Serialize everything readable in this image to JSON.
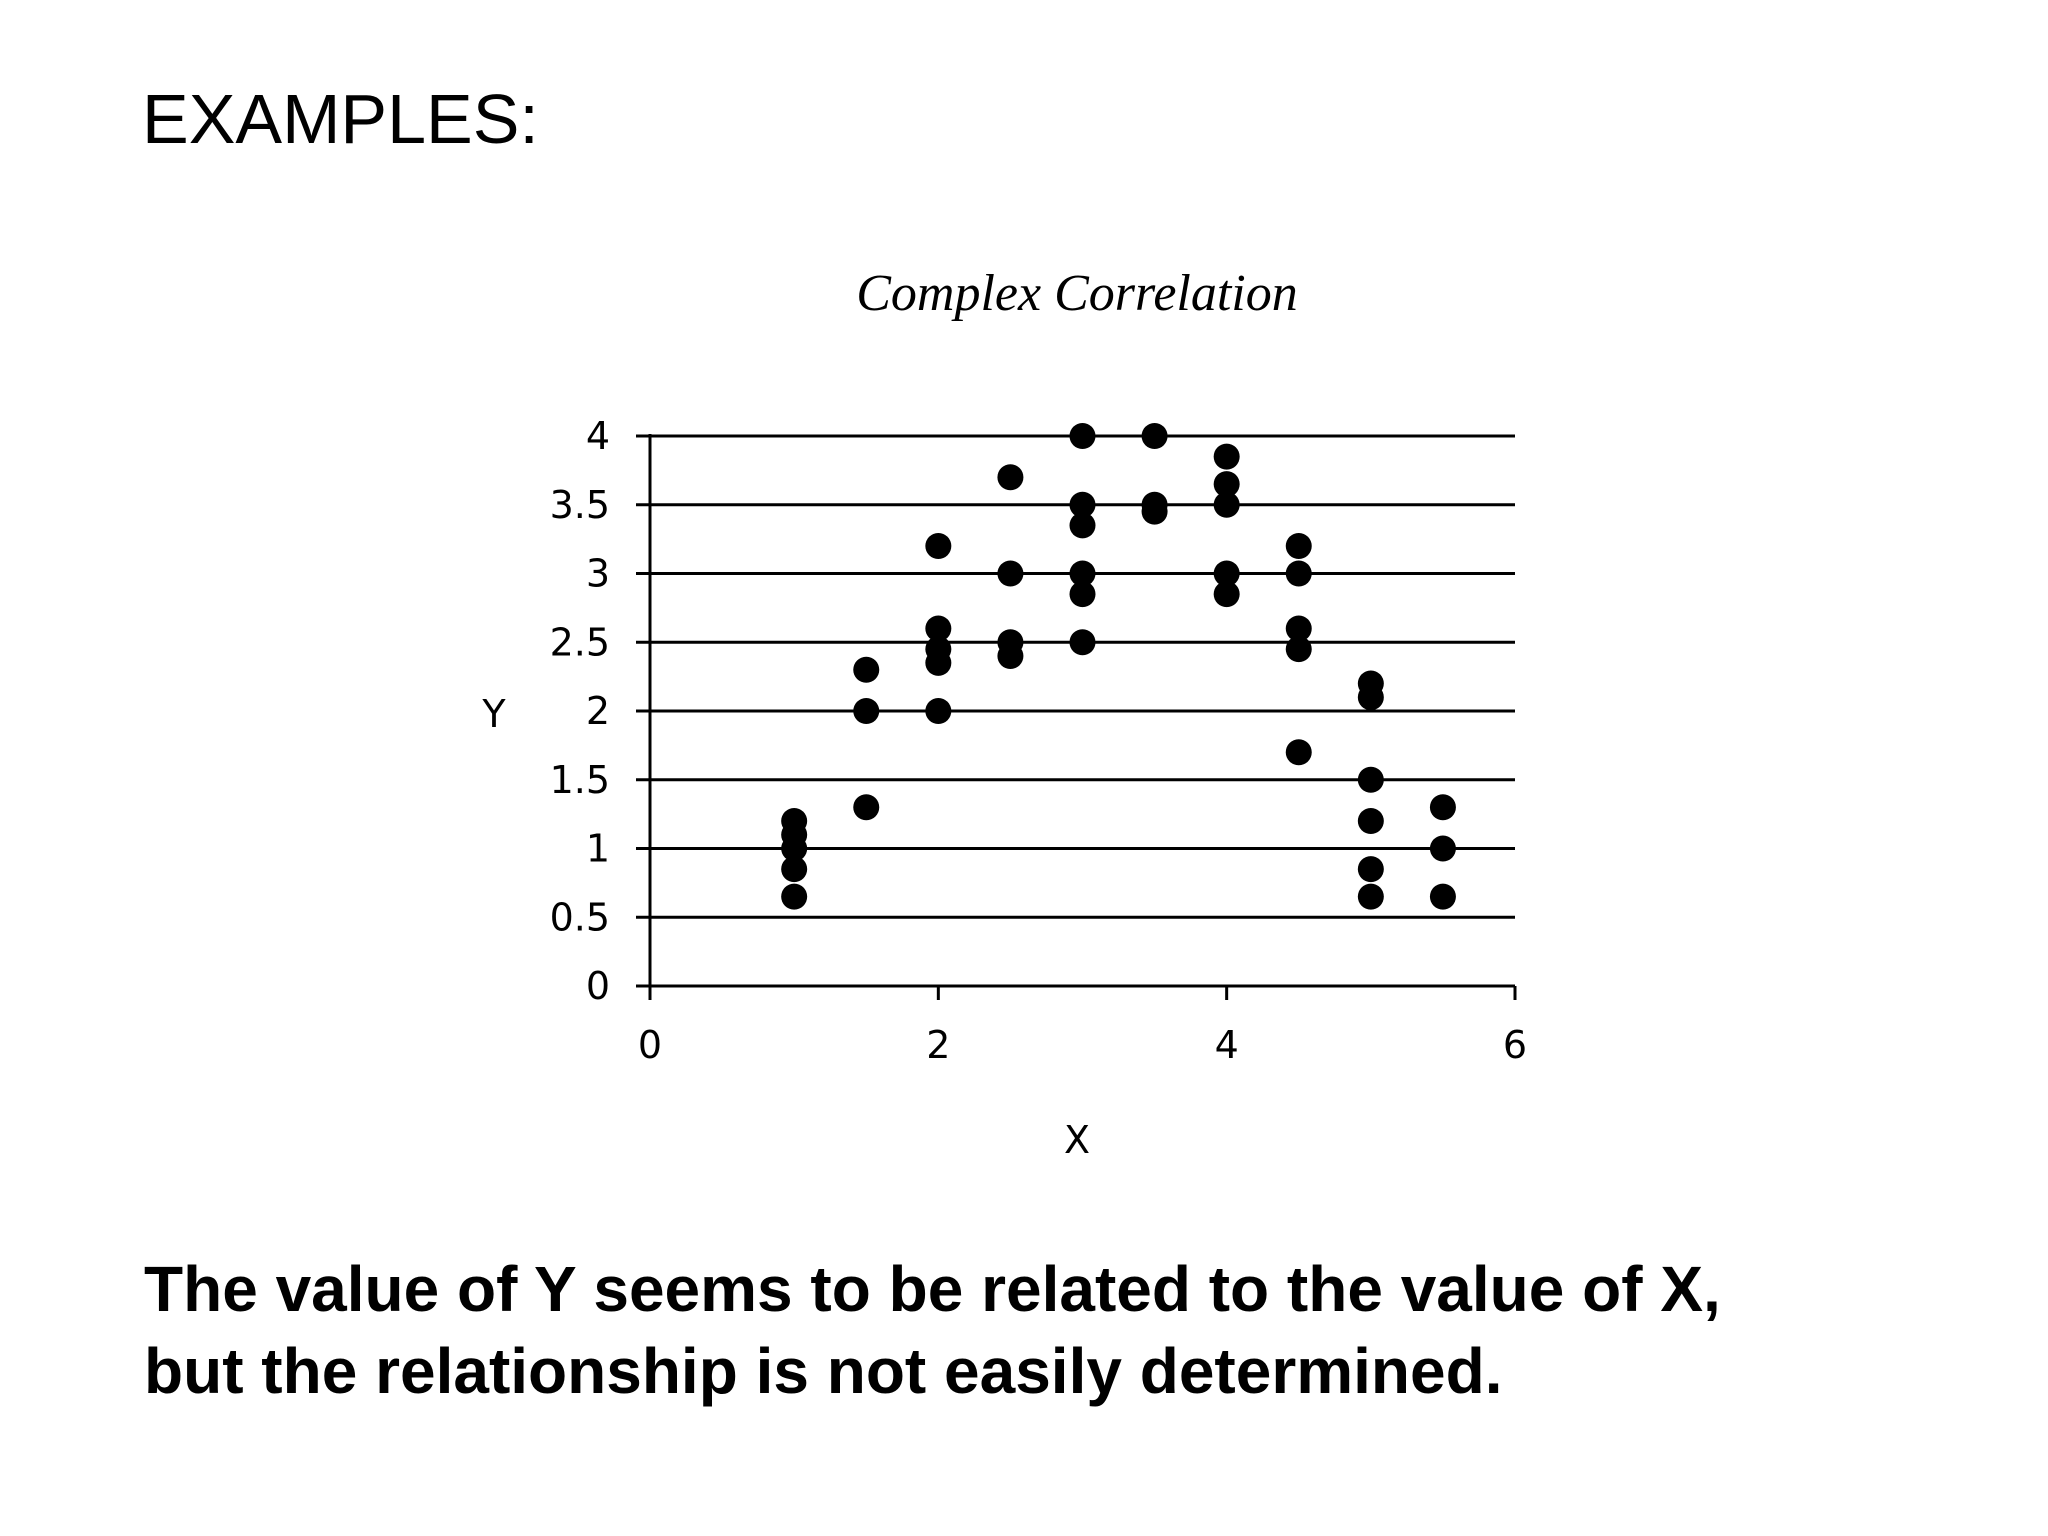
{
  "slide": {
    "heading": "EXAMPLES:",
    "caption_lines": [
      "The value of Y seems to be related to the value of X,",
      "but the relationship is not easily determined."
    ]
  },
  "chart_data": {
    "type": "scatter",
    "title": "Complex Correlation",
    "xlabel": "X",
    "ylabel": "Y",
    "xlim": [
      0,
      6
    ],
    "ylim": [
      0,
      4
    ],
    "xticks": [
      "0",
      "2",
      "4",
      "6"
    ],
    "yticks": [
      "0",
      "0.5",
      "1",
      "1.5",
      "2",
      "2.5",
      "3",
      "3.5",
      "4"
    ],
    "grid": "horizontal",
    "legend": "none",
    "marker_color": "#000000",
    "points": [
      [
        1,
        1.2
      ],
      [
        1,
        1.1
      ],
      [
        1,
        1.0
      ],
      [
        1,
        0.85
      ],
      [
        1,
        0.65
      ],
      [
        1.5,
        2.3
      ],
      [
        1.5,
        2.0
      ],
      [
        1.5,
        1.3
      ],
      [
        2,
        3.2
      ],
      [
        2,
        2.6
      ],
      [
        2,
        2.45
      ],
      [
        2,
        2.35
      ],
      [
        2,
        2.0
      ],
      [
        2.5,
        3.7
      ],
      [
        2.5,
        3.0
      ],
      [
        2.5,
        2.5
      ],
      [
        2.5,
        2.4
      ],
      [
        3,
        4.0
      ],
      [
        3,
        3.5
      ],
      [
        3,
        3.35
      ],
      [
        3,
        3.0
      ],
      [
        3,
        2.85
      ],
      [
        3,
        2.5
      ],
      [
        3.5,
        4.0
      ],
      [
        3.5,
        3.5
      ],
      [
        3.5,
        3.45
      ],
      [
        4,
        3.85
      ],
      [
        4,
        3.65
      ],
      [
        4,
        3.5
      ],
      [
        4,
        3.0
      ],
      [
        4,
        2.85
      ],
      [
        4.5,
        3.2
      ],
      [
        4.5,
        3.0
      ],
      [
        4.5,
        2.6
      ],
      [
        4.5,
        2.45
      ],
      [
        4.5,
        1.7
      ],
      [
        5,
        2.2
      ],
      [
        5,
        2.1
      ],
      [
        5,
        1.5
      ],
      [
        5,
        1.2
      ],
      [
        5,
        0.85
      ],
      [
        5,
        0.65
      ],
      [
        5.5,
        1.3
      ],
      [
        5.5,
        1.0
      ],
      [
        5.5,
        0.65
      ]
    ]
  }
}
